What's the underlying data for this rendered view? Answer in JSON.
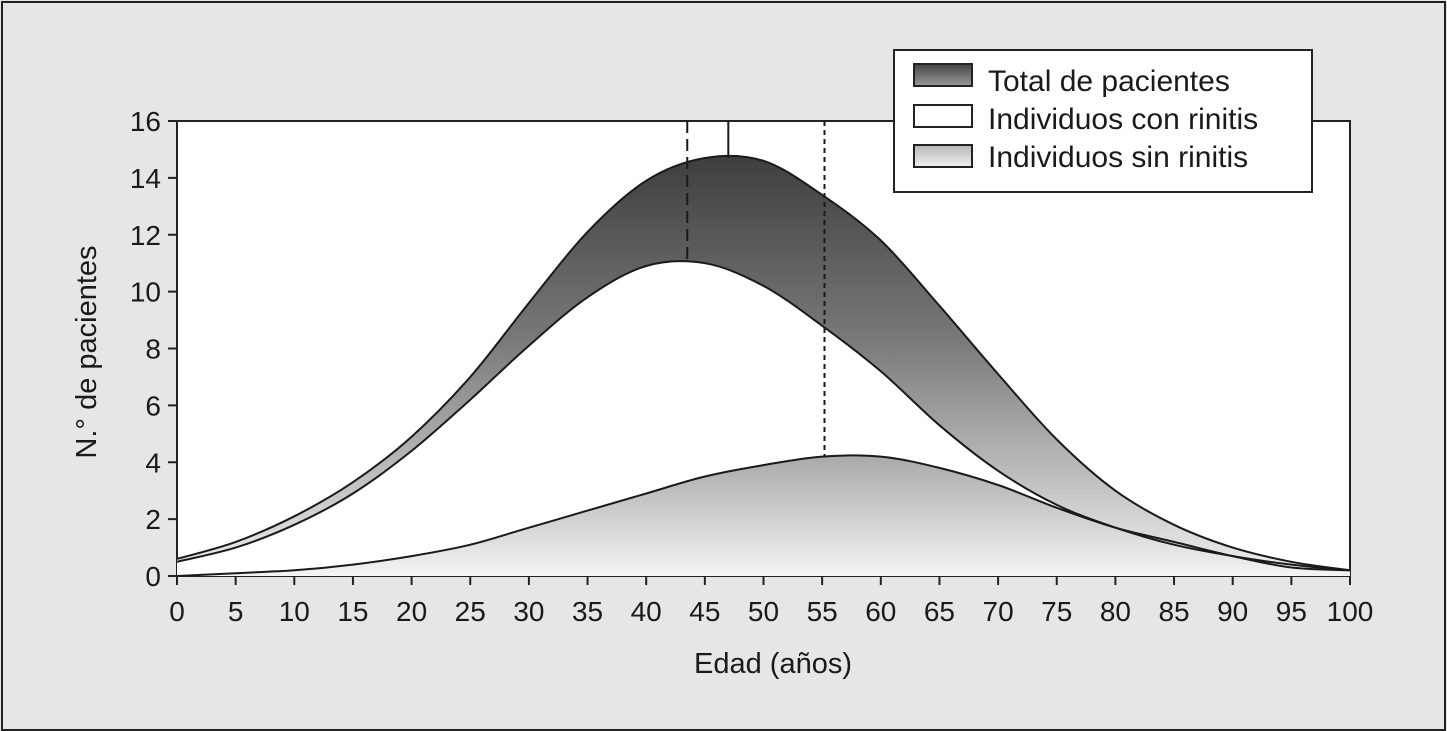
{
  "chart_data": {
    "type": "area",
    "xlabel": "Edad (años)",
    "ylabel": "N.° de pacientes",
    "xlim": [
      0,
      100
    ],
    "ylim": [
      0,
      16
    ],
    "x_ticks": [
      0,
      5,
      10,
      15,
      20,
      25,
      30,
      35,
      40,
      45,
      50,
      55,
      60,
      65,
      70,
      75,
      80,
      85,
      90,
      95,
      100
    ],
    "y_ticks": [
      0,
      2,
      4,
      6,
      8,
      10,
      12,
      14,
      16
    ],
    "grid": false,
    "legend_position": "top-right",
    "x": [
      0,
      5,
      10,
      15,
      20,
      25,
      30,
      35,
      40,
      45,
      50,
      55,
      60,
      65,
      70,
      75,
      80,
      85,
      90,
      95,
      100
    ],
    "series": [
      {
        "name": "Total de pacientes",
        "color": "#4a4a4a",
        "values": [
          0.6,
          1.2,
          2.1,
          3.3,
          4.9,
          7.0,
          9.6,
          12.1,
          13.9,
          14.7,
          14.6,
          13.4,
          11.8,
          9.5,
          7.1,
          4.8,
          3.0,
          1.8,
          1.0,
          0.5,
          0.2
        ]
      },
      {
        "name": "Individuos con rinitis",
        "color": "#ffffff",
        "values": [
          0.5,
          1.0,
          1.8,
          2.9,
          4.4,
          6.2,
          8.1,
          9.8,
          10.9,
          11.0,
          10.2,
          8.8,
          7.2,
          5.3,
          3.7,
          2.5,
          1.7,
          1.1,
          0.7,
          0.4,
          0.2
        ]
      },
      {
        "name": "Individuos sin rinitis",
        "color": "#cfcfcf",
        "values": [
          0.0,
          0.1,
          0.2,
          0.4,
          0.7,
          1.1,
          1.7,
          2.3,
          2.9,
          3.5,
          3.9,
          4.2,
          4.2,
          3.8,
          3.2,
          2.4,
          1.7,
          1.2,
          0.7,
          0.3,
          0.2
        ]
      }
    ],
    "reference_lines": [
      {
        "x": 43.5,
        "top": 11.0,
        "style": "dashed"
      },
      {
        "x": 47,
        "top": 14.7,
        "style": "solid"
      },
      {
        "x": 55.2,
        "top": 4.2,
        "style": "dotted"
      }
    ]
  }
}
